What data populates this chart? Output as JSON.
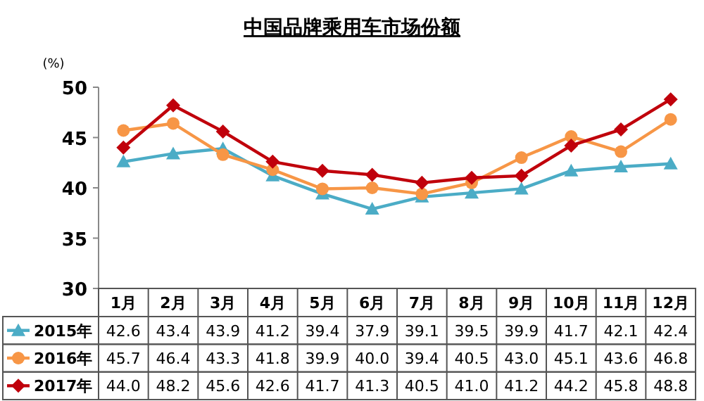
{
  "chart_data": {
    "type": "line",
    "title": "中国品牌乘用车市场份额",
    "ylabel": "(%)",
    "categories": [
      "1月",
      "2月",
      "3月",
      "4月",
      "5月",
      "6月",
      "7月",
      "8月",
      "9月",
      "10月",
      "11月",
      "12月"
    ],
    "series": [
      {
        "name": "2015年",
        "color": "#4bacc6",
        "marker": "triangle",
        "values": [
          42.6,
          43.4,
          43.9,
          41.2,
          39.4,
          37.9,
          39.1,
          39.5,
          39.9,
          41.7,
          42.1,
          42.4
        ],
        "value_labels": [
          "42.6",
          "43.4",
          "43.9",
          "41.2",
          "39.4",
          "37.9",
          "39.1",
          "39.5",
          "39.9",
          "41.7",
          "42.1",
          "42.4"
        ]
      },
      {
        "name": "2016年",
        "color": "#f79646",
        "marker": "circle",
        "values": [
          45.7,
          46.4,
          43.3,
          41.8,
          39.9,
          40.0,
          39.4,
          40.5,
          43.0,
          45.1,
          43.6,
          46.8
        ],
        "value_labels": [
          "45.7",
          "46.4",
          "43.3",
          "41.8",
          "39.9",
          "40.0",
          "39.4",
          "40.5",
          "43.0",
          "45.1",
          "43.6",
          "46.8"
        ]
      },
      {
        "name": "2017年",
        "color": "#c0000b",
        "marker": "diamond",
        "values": [
          44.0,
          48.2,
          45.6,
          42.6,
          41.7,
          41.3,
          40.5,
          41.0,
          41.2,
          44.2,
          45.8,
          48.8
        ],
        "value_labels": [
          "44.0",
          "48.2",
          "45.6",
          "42.6",
          "41.7",
          "41.3",
          "40.5",
          "41.0",
          "41.2",
          "44.2",
          "45.8",
          "48.8"
        ]
      }
    ],
    "ylim": [
      30,
      50
    ],
    "yticks": [
      30,
      35,
      40,
      45,
      50
    ],
    "grid": false,
    "legend": "bottom",
    "line_style": "solid"
  }
}
